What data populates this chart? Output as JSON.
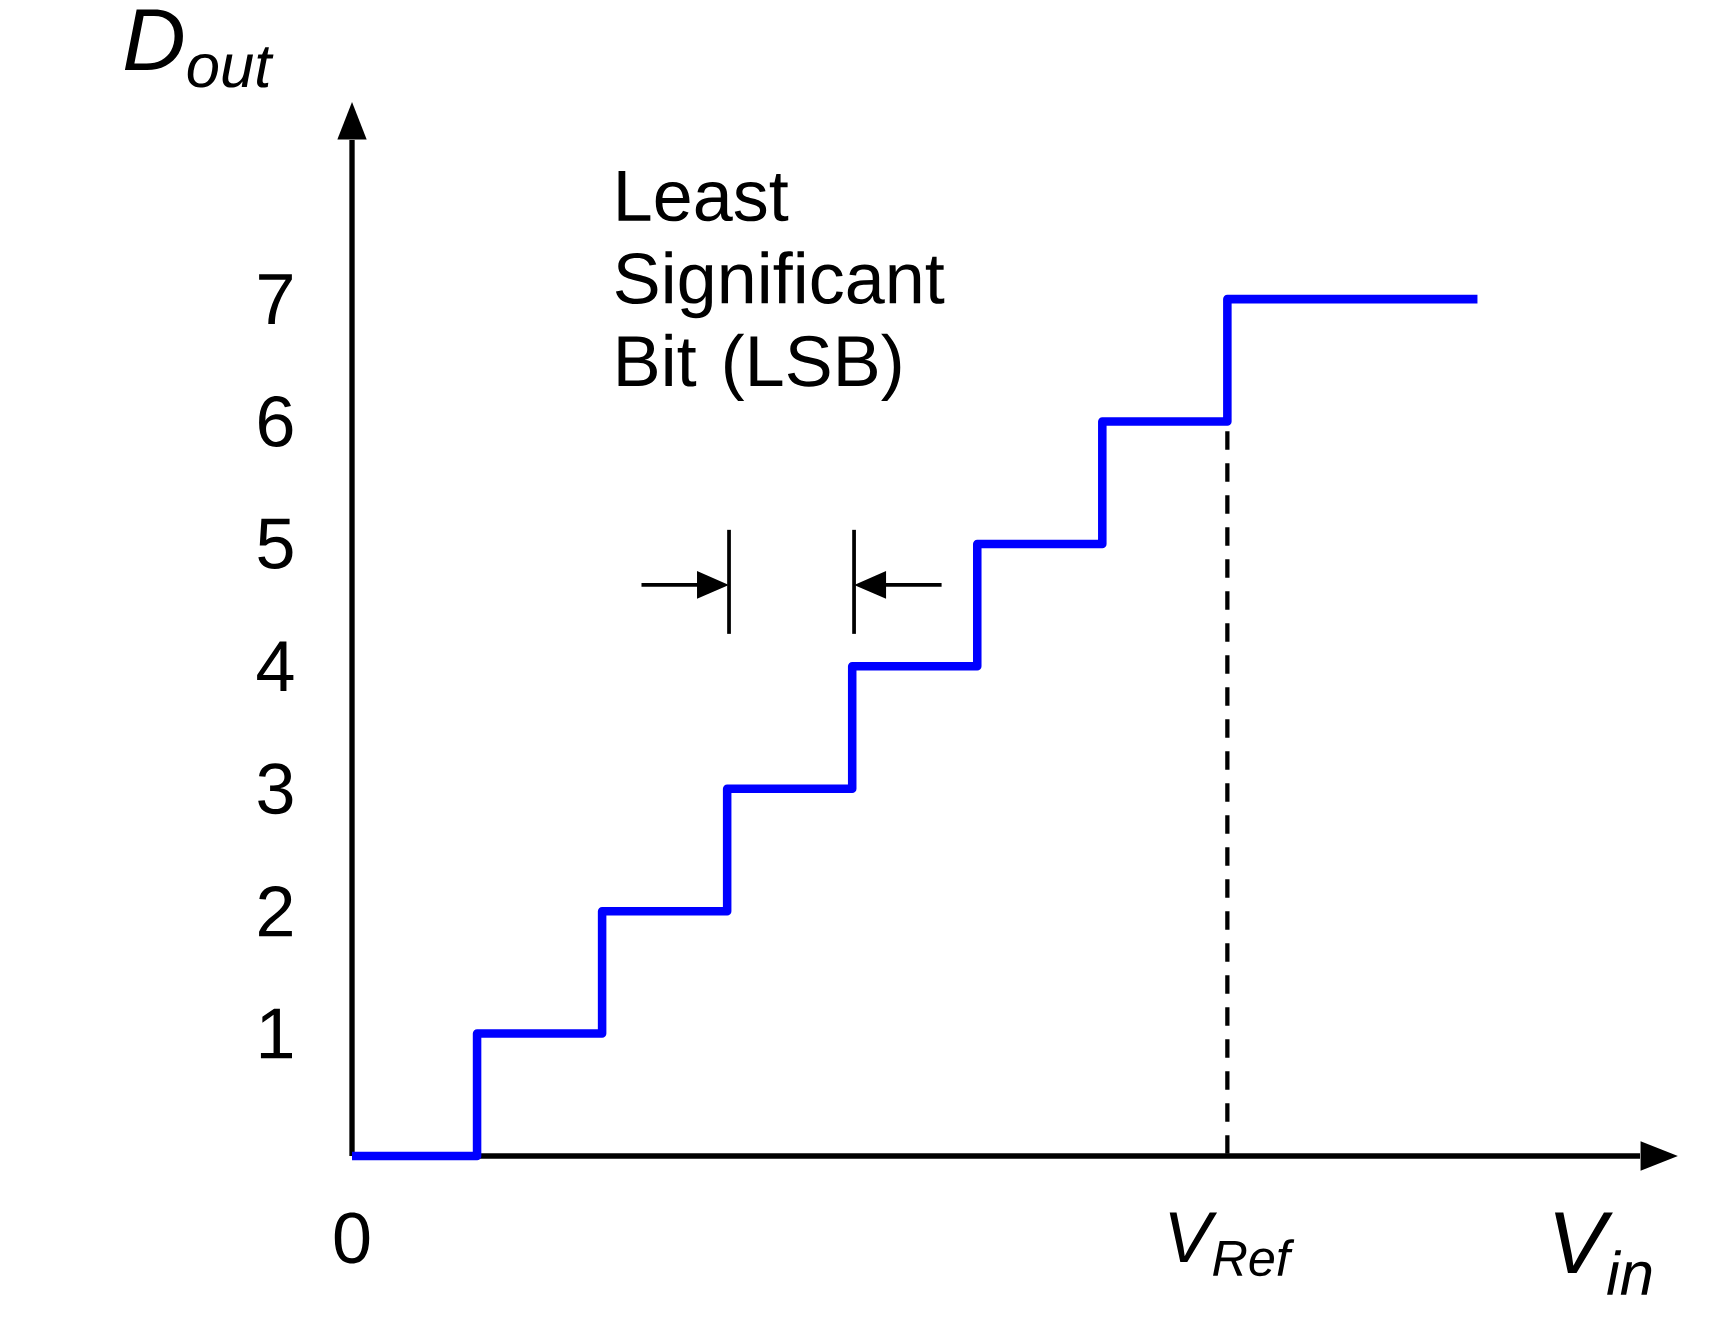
{
  "chart_data": {
    "type": "step",
    "xlabel": "V$_{in}$",
    "ylabel": "D$_{out}$",
    "categories": [
      "0",
      null,
      null,
      null,
      null,
      null,
      null,
      "V$_{Ref}$",
      null,
      null
    ],
    "series": [
      {
        "color": "#0000ff",
        "values": [
          0,
          1,
          2,
          3,
          4,
          5,
          6,
          7,
          7,
          7
        ]
      }
    ],
    "ylim": [
      0,
      8.3
    ],
    "yticks": [
      1,
      2,
      3,
      4,
      5,
      6,
      7
    ],
    "annotations": [
      "Least Significant Bit (LSB)"
    ],
    "marker": "none",
    "line_style": "solid"
  }
}
